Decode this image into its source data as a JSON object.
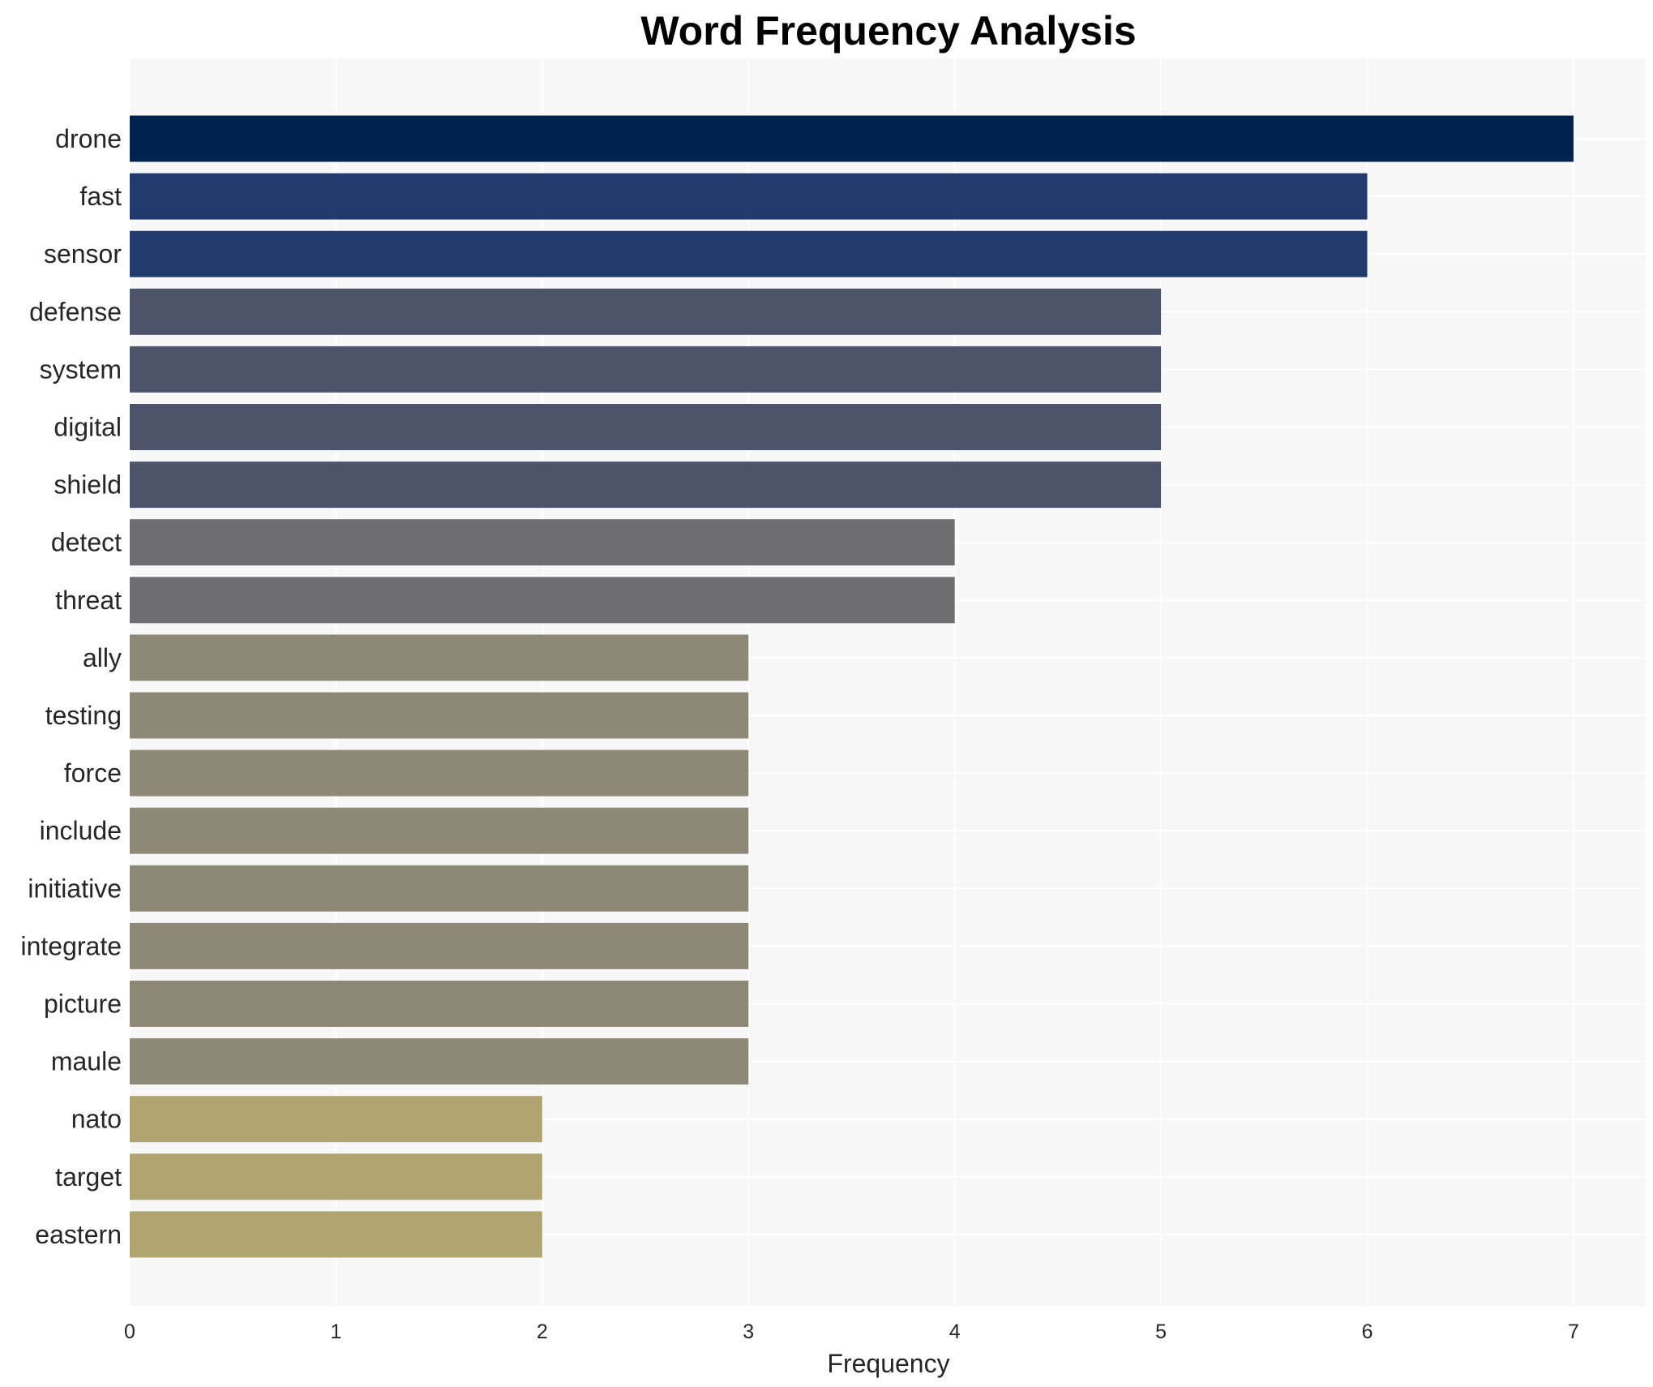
{
  "chart_data": {
    "type": "bar",
    "orientation": "horizontal",
    "title": "Word Frequency Analysis",
    "xlabel": "Frequency",
    "ylabel": "",
    "xlim": [
      0,
      7.35
    ],
    "xticks": [
      0,
      1,
      2,
      3,
      4,
      5,
      6,
      7
    ],
    "grid": true,
    "categories": [
      "drone",
      "fast",
      "sensor",
      "defense",
      "system",
      "digital",
      "shield",
      "detect",
      "threat",
      "ally",
      "testing",
      "force",
      "include",
      "initiative",
      "integrate",
      "picture",
      "maule",
      "nato",
      "target",
      "eastern"
    ],
    "values": [
      7,
      6,
      6,
      5,
      5,
      5,
      5,
      4,
      4,
      3,
      3,
      3,
      3,
      3,
      3,
      3,
      3,
      2,
      2,
      2
    ],
    "color_by_value": {
      "7": "#00224e",
      "6": "#213a6d",
      "5": "#4c546c",
      "4": "#6e6e71",
      "3": "#8e8877",
      "2": "#b0a570"
    },
    "plot_background": "#f7f7f7"
  }
}
